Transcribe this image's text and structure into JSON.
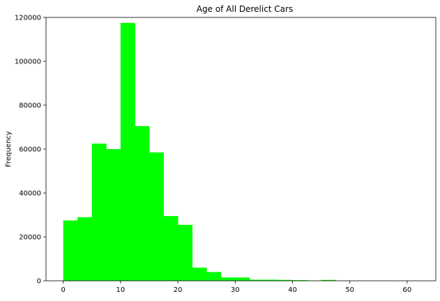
{
  "chart_data": {
    "type": "bar",
    "title": "Age of All Derelict Cars",
    "xlabel": "",
    "ylabel": "Frequency",
    "xlim": [
      -3,
      65
    ],
    "ylim": [
      0,
      120000
    ],
    "xticks": [
      "0",
      "10",
      "20",
      "30",
      "40",
      "50",
      "60"
    ],
    "yticks": [
      "0",
      "20000",
      "40000",
      "60000",
      "80000",
      "100000",
      "120000"
    ],
    "xtick_values": [
      0,
      10,
      20,
      30,
      40,
      50,
      60
    ],
    "ytick_values": [
      0,
      20000,
      40000,
      60000,
      80000,
      100000,
      120000
    ],
    "bar_color": "#00ff00",
    "grid": false,
    "bins": [
      {
        "x0": 0,
        "x1": 2.5,
        "value": 27500
      },
      {
        "x0": 2.5,
        "x1": 5,
        "value": 29000
      },
      {
        "x0": 5,
        "x1": 7.5,
        "value": 62500
      },
      {
        "x0": 7.5,
        "x1": 10,
        "value": 60000
      },
      {
        "x0": 10,
        "x1": 12.5,
        "value": 117500
      },
      {
        "x0": 12.5,
        "x1": 15,
        "value": 70500
      },
      {
        "x0": 15,
        "x1": 17.5,
        "value": 58500
      },
      {
        "x0": 17.5,
        "x1": 20,
        "value": 29500
      },
      {
        "x0": 20,
        "x1": 22.5,
        "value": 25500
      },
      {
        "x0": 22.5,
        "x1": 25,
        "value": 6000
      },
      {
        "x0": 25,
        "x1": 27.5,
        "value": 4000
      },
      {
        "x0": 27.5,
        "x1": 30,
        "value": 1500
      },
      {
        "x0": 30,
        "x1": 32.5,
        "value": 1500
      },
      {
        "x0": 32.5,
        "x1": 35,
        "value": 500
      },
      {
        "x0": 35,
        "x1": 37.5,
        "value": 500
      },
      {
        "x0": 37.5,
        "x1": 40,
        "value": 400
      },
      {
        "x0": 40,
        "x1": 42.5,
        "value": 300
      },
      {
        "x0": 42.5,
        "x1": 45,
        "value": 100
      },
      {
        "x0": 45,
        "x1": 47.5,
        "value": 400
      },
      {
        "x0": 47.5,
        "x1": 50,
        "value": 50
      },
      {
        "x0": 50,
        "x1": 52.5,
        "value": 50
      },
      {
        "x0": 52.5,
        "x1": 55,
        "value": 30
      },
      {
        "x0": 55,
        "x1": 57.5,
        "value": 20
      },
      {
        "x0": 57.5,
        "x1": 60,
        "value": 10
      },
      {
        "x0": 60,
        "x1": 62.5,
        "value": 10
      }
    ]
  }
}
